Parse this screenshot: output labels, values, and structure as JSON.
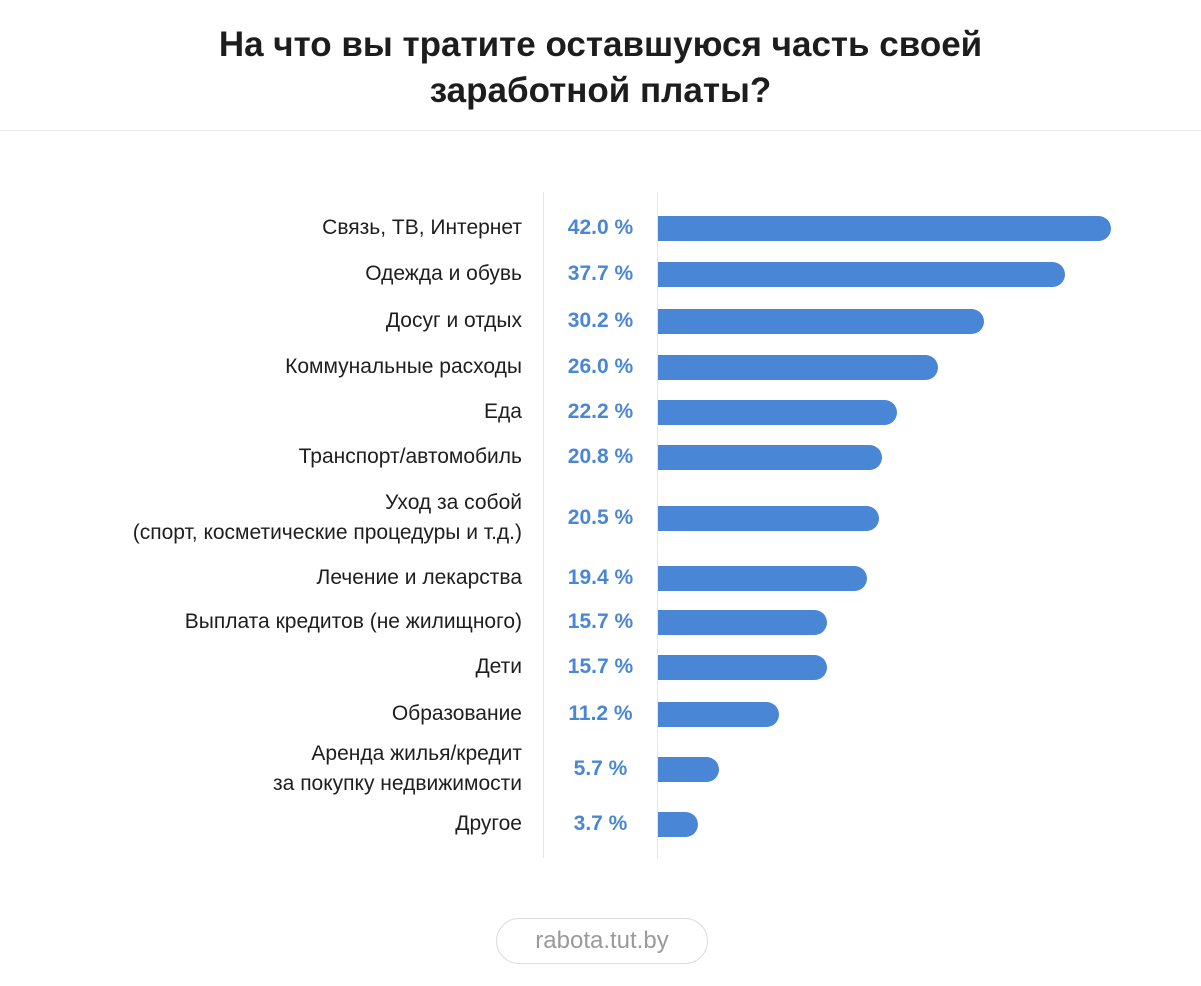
{
  "chart_data": {
    "type": "bar",
    "orientation": "horizontal",
    "title": "На что вы тратите оставшуюся часть своей\nзаработной платы?",
    "value_format": "percent",
    "categories": [
      "Связь, ТВ, Интернет",
      "Одежда и обувь",
      "Досуг и отдых",
      "Коммунальные расходы",
      "Еда",
      "Транспорт/автомобиль",
      "Уход за собой\n(спорт, косметические процедуры и т.д.)",
      "Лечение и лекарства",
      "Выплата кредитов (не жилищного)",
      "Дети",
      "Образование",
      "Аренда жилья/кредит\nза покупку недвижимости",
      "Другое"
    ],
    "values": [
      42.0,
      37.7,
      30.2,
      26.0,
      22.2,
      20.8,
      20.5,
      19.4,
      15.7,
      15.7,
      11.2,
      5.7,
      3.7
    ],
    "value_labels": [
      "42.0 %",
      "37.7 %",
      "30.2 %",
      "26.0 %",
      "22.2 %",
      "20.8 %",
      "20.5 %",
      "19.4 %",
      "15.7 %",
      "15.7 %",
      "11.2 %",
      "5.7 %",
      "3.7 %"
    ],
    "xlim": [
      0,
      42
    ],
    "grid": false,
    "legend": "none",
    "bar_color": "#4a86d6",
    "value_label_color": "#4a86d6"
  },
  "source": "rabota.tut.by"
}
